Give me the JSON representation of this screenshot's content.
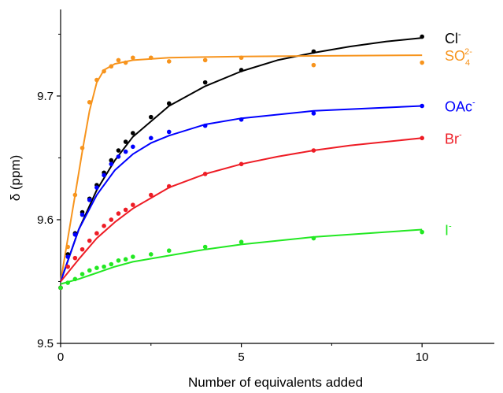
{
  "chart_data": {
    "type": "scatter",
    "title": "",
    "xlabel": "Number of equivalents added",
    "ylabel": "δ (ppm)",
    "xlim": [
      0,
      12
    ],
    "ylim": [
      9.5,
      9.77
    ],
    "xticks": [
      0,
      5,
      10
    ],
    "yticks": [
      9.5,
      9.6,
      9.7
    ],
    "ytick_labels": [
      "9.5",
      "9.6",
      "9.7"
    ],
    "xtick_labels": [
      "0",
      "5",
      "10"
    ],
    "grid": false,
    "legend": "inline labels at right",
    "series": [
      {
        "name": "Cl-",
        "label_main": "Cl",
        "label_sup": "-",
        "label_sub": "",
        "color": "#000000",
        "x": [
          0,
          0.2,
          0.4,
          0.6,
          0.8,
          1.0,
          1.2,
          1.4,
          1.6,
          1.8,
          2.0,
          2.5,
          3.0,
          4.0,
          5.0,
          7.0,
          10.0
        ],
        "y": [
          9.545,
          9.572,
          9.589,
          9.606,
          9.617,
          9.628,
          9.638,
          9.648,
          9.656,
          9.663,
          9.67,
          9.683,
          9.694,
          9.711,
          9.721,
          9.736,
          9.748
        ],
        "fit": [
          [
            0,
            9.55
          ],
          [
            0.5,
            9.592
          ],
          [
            1.0,
            9.624
          ],
          [
            1.5,
            9.648
          ],
          [
            2.0,
            9.667
          ],
          [
            3.0,
            9.692
          ],
          [
            4.0,
            9.708
          ],
          [
            5.0,
            9.72
          ],
          [
            6.0,
            9.729
          ],
          [
            7.0,
            9.735
          ],
          [
            8.0,
            9.74
          ],
          [
            9.0,
            9.744
          ],
          [
            10.0,
            9.747
          ]
        ]
      },
      {
        "name": "SO4 2-",
        "label_main": "SO",
        "label_sup": "2-",
        "label_sub": "4",
        "color": "#f7941d",
        "x": [
          0,
          0.2,
          0.4,
          0.6,
          0.8,
          1.0,
          1.2,
          1.4,
          1.6,
          1.8,
          2.0,
          2.5,
          3.0,
          4.0,
          5.0,
          7.0,
          10.0
        ],
        "y": [
          9.545,
          9.578,
          9.62,
          9.658,
          9.695,
          9.713,
          9.72,
          9.724,
          9.729,
          9.727,
          9.731,
          9.731,
          9.728,
          9.729,
          9.731,
          9.725,
          9.727
        ],
        "fit": [
          [
            0,
            9.55
          ],
          [
            0.2,
            9.585
          ],
          [
            0.4,
            9.62
          ],
          [
            0.6,
            9.655
          ],
          [
            0.8,
            9.688
          ],
          [
            1.0,
            9.711
          ],
          [
            1.2,
            9.721
          ],
          [
            1.5,
            9.726
          ],
          [
            2.0,
            9.729
          ],
          [
            3.0,
            9.731
          ],
          [
            5.0,
            9.732
          ],
          [
            10.0,
            9.733
          ]
        ]
      },
      {
        "name": "OAc-",
        "label_main": "OAc",
        "label_sup": "-",
        "label_sub": "",
        "color": "#0000ff",
        "x": [
          0,
          0.2,
          0.4,
          0.6,
          0.8,
          1.0,
          1.2,
          1.4,
          1.6,
          1.8,
          2.0,
          2.5,
          3.0,
          4.0,
          5.0,
          7.0,
          10.0
        ],
        "y": [
          9.545,
          9.57,
          9.588,
          9.604,
          9.616,
          9.626,
          9.636,
          9.645,
          9.651,
          9.655,
          9.659,
          9.666,
          9.671,
          9.676,
          9.681,
          9.686,
          9.692
        ],
        "fit": [
          [
            0,
            9.55
          ],
          [
            0.5,
            9.592
          ],
          [
            1.0,
            9.62
          ],
          [
            1.5,
            9.64
          ],
          [
            2.0,
            9.653
          ],
          [
            2.5,
            9.662
          ],
          [
            3.0,
            9.668
          ],
          [
            4.0,
            9.677
          ],
          [
            5.0,
            9.682
          ],
          [
            7.0,
            9.688
          ],
          [
            10.0,
            9.692
          ]
        ]
      },
      {
        "name": "Br-",
        "label_main": "Br",
        "label_sup": "-",
        "label_sub": "",
        "color": "#ee1c25",
        "x": [
          0,
          0.2,
          0.4,
          0.6,
          0.8,
          1.0,
          1.2,
          1.4,
          1.6,
          1.8,
          2.0,
          2.5,
          3.0,
          4.0,
          5.0,
          7.0,
          10.0
        ],
        "y": [
          9.545,
          9.562,
          9.569,
          9.576,
          9.583,
          9.589,
          9.595,
          9.6,
          9.605,
          9.608,
          9.612,
          9.62,
          9.627,
          9.637,
          9.645,
          9.656,
          9.666
        ],
        "fit": [
          [
            0,
            9.55
          ],
          [
            0.5,
            9.568
          ],
          [
            1.0,
            9.585
          ],
          [
            1.5,
            9.598
          ],
          [
            2.0,
            9.609
          ],
          [
            3.0,
            9.626
          ],
          [
            4.0,
            9.637
          ],
          [
            5.0,
            9.645
          ],
          [
            6.0,
            9.651
          ],
          [
            7.0,
            9.656
          ],
          [
            8.0,
            9.66
          ],
          [
            9.0,
            9.663
          ],
          [
            10.0,
            9.666
          ]
        ]
      },
      {
        "name": "I-",
        "label_main": "I",
        "label_sup": "-",
        "label_sub": "",
        "color": "#22e822",
        "x": [
          0,
          0.2,
          0.4,
          0.6,
          0.8,
          1.0,
          1.2,
          1.4,
          1.6,
          1.8,
          2.0,
          2.5,
          3.0,
          4.0,
          5.0,
          7.0,
          10.0
        ],
        "y": [
          9.545,
          9.549,
          9.552,
          9.556,
          9.559,
          9.561,
          9.562,
          9.564,
          9.567,
          9.568,
          9.57,
          9.572,
          9.575,
          9.578,
          9.582,
          9.585,
          9.59
        ],
        "fit": [
          [
            0,
            9.548
          ],
          [
            0.5,
            9.552
          ],
          [
            1.0,
            9.557
          ],
          [
            1.5,
            9.562
          ],
          [
            2.0,
            9.566
          ],
          [
            3.0,
            9.571
          ],
          [
            4.0,
            9.576
          ],
          [
            5.0,
            9.58
          ],
          [
            7.0,
            9.586
          ],
          [
            10.0,
            9.592
          ]
        ]
      }
    ]
  }
}
